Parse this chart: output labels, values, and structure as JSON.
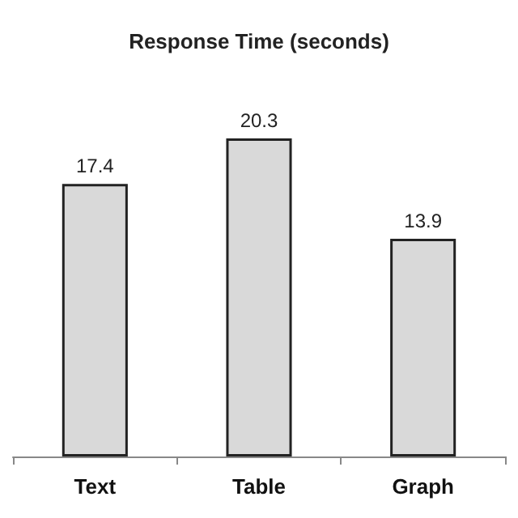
{
  "chart_data": {
    "type": "bar",
    "title": "Response Time (seconds)",
    "categories": [
      "Text",
      "Table",
      "Graph"
    ],
    "values": [
      17.4,
      20.3,
      13.9
    ],
    "color": "#d9d9d9",
    "data_labels": true
  }
}
